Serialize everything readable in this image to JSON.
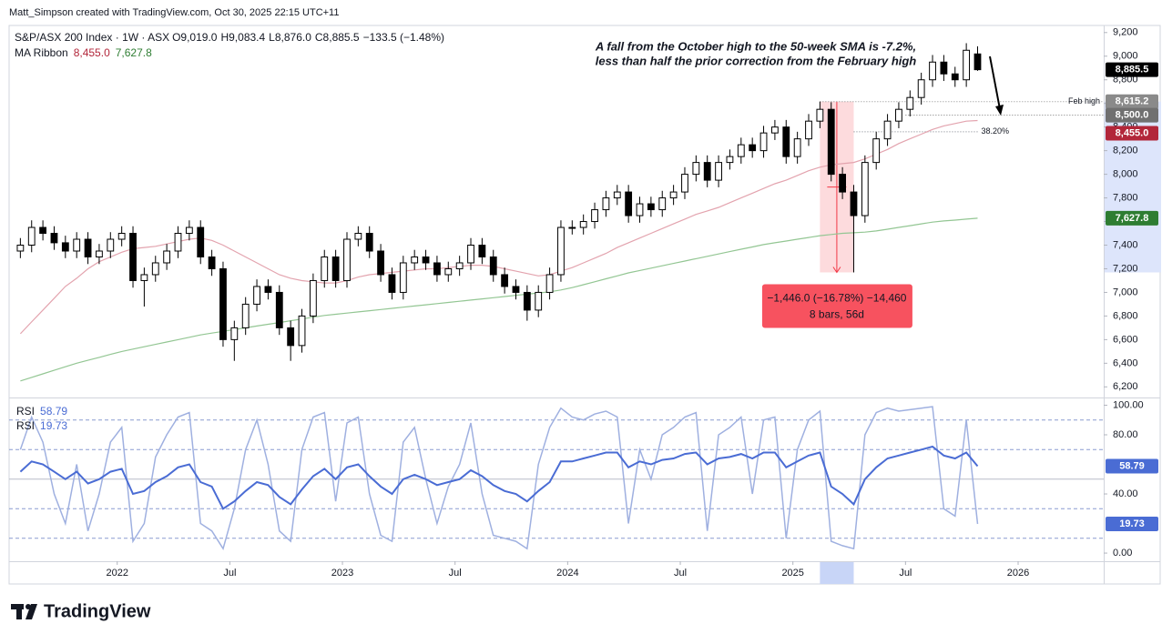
{
  "header": {
    "credit": "Matt_Simpson created with TradingView.com, Oct 30, 2025 22:15 UTC+11"
  },
  "footer": {
    "brand": "TradingView"
  },
  "chart_data": [
    {
      "type": "candlestick",
      "title": "S&P/ASX 200 Index · 1W · ASX",
      "legend_values": [
        "O9,019.0",
        "H9,083.4",
        "L8,876.0",
        "C8,885.5",
        "−133.5 (−1.48%)"
      ],
      "up_color": "#ffffff",
      "down_color": "#000000",
      "x": [
        2021.57,
        2021.62,
        2021.67,
        2021.72,
        2021.77,
        2021.82,
        2021.87,
        2021.92,
        2021.97,
        2022.02,
        2022.07,
        2022.12,
        2022.17,
        2022.22,
        2022.27,
        2022.32,
        2022.37,
        2022.42,
        2022.47,
        2022.52,
        2022.57,
        2022.62,
        2022.67,
        2022.72,
        2022.77,
        2022.82,
        2022.87,
        2022.92,
        2022.97,
        2023.02,
        2023.07,
        2023.12,
        2023.17,
        2023.22,
        2023.27,
        2023.32,
        2023.37,
        2023.42,
        2023.47,
        2023.52,
        2023.57,
        2023.62,
        2023.67,
        2023.72,
        2023.77,
        2023.82,
        2023.87,
        2023.92,
        2023.97,
        2024.02,
        2024.07,
        2024.12,
        2024.17,
        2024.22,
        2024.27,
        2024.32,
        2024.37,
        2024.42,
        2024.47,
        2024.52,
        2024.57,
        2024.62,
        2024.67,
        2024.72,
        2024.77,
        2024.82,
        2024.87,
        2024.92,
        2024.97,
        2025.02,
        2025.07,
        2025.12,
        2025.17,
        2025.22,
        2025.27,
        2025.32,
        2025.37,
        2025.42,
        2025.47,
        2025.52,
        2025.57,
        2025.62,
        2025.67,
        2025.72,
        2025.77,
        2025.82
      ],
      "open": [
        7350,
        7400,
        7550,
        7500,
        7420,
        7350,
        7450,
        7300,
        7350,
        7450,
        7500,
        7100,
        7150,
        7250,
        7350,
        7500,
        7550,
        7300,
        7200,
        6600,
        6700,
        6900,
        7050,
        7000,
        6700,
        6550,
        6800,
        7100,
        7300,
        7100,
        7450,
        7500,
        7350,
        7150,
        7000,
        7250,
        7300,
        7250,
        7150,
        7200,
        7250,
        7400,
        7300,
        7150,
        7050,
        7000,
        6850,
        7000,
        7150,
        7550,
        7550,
        7600,
        7700,
        7800,
        7850,
        7650,
        7750,
        7700,
        7800,
        7850,
        8000,
        8100,
        7950,
        8100,
        8150,
        8250,
        8200,
        8350,
        8400,
        8150,
        8300,
        8450,
        8550,
        8000,
        7850,
        7650,
        8100,
        8300,
        8450,
        8550,
        8650,
        8800,
        8950,
        8850,
        8800,
        9019
      ],
      "high": [
        7460,
        7610,
        7610,
        7560,
        7480,
        7510,
        7510,
        7410,
        7510,
        7560,
        7560,
        7210,
        7310,
        7410,
        7560,
        7610,
        7610,
        7360,
        7260,
        6760,
        6960,
        7110,
        7110,
        7060,
        6760,
        6860,
        7160,
        7360,
        7360,
        7510,
        7560,
        7560,
        7410,
        7210,
        7310,
        7360,
        7360,
        7310,
        7260,
        7310,
        7460,
        7460,
        7360,
        7210,
        7110,
        7060,
        7060,
        7210,
        7610,
        7610,
        7660,
        7760,
        7860,
        7910,
        7910,
        7810,
        7810,
        7860,
        7910,
        8060,
        8160,
        8160,
        8160,
        8210,
        8310,
        8310,
        8410,
        8460,
        8460,
        8360,
        8510,
        8615.2,
        8610,
        8060,
        7910,
        8160,
        8360,
        8510,
        8610,
        8710,
        8860,
        9010,
        9010,
        8910,
        9110,
        9083.4
      ],
      "low": [
        7290,
        7340,
        7440,
        7360,
        7290,
        7290,
        7240,
        7240,
        7290,
        7390,
        7040,
        6880,
        7090,
        7190,
        7290,
        7440,
        7240,
        7140,
        6540,
        6420,
        6640,
        6840,
        6940,
        6640,
        6420,
        6490,
        6740,
        7040,
        7040,
        7040,
        7390,
        7290,
        7090,
        6940,
        6940,
        7190,
        7190,
        7090,
        7090,
        7140,
        7190,
        7240,
        7090,
        6990,
        6940,
        6760,
        6790,
        6940,
        7090,
        7490,
        7490,
        7540,
        7640,
        7740,
        7590,
        7590,
        7640,
        7640,
        7740,
        7790,
        7940,
        7890,
        7890,
        8040,
        8090,
        8140,
        8140,
        8290,
        8090,
        8090,
        8240,
        8390,
        7940,
        7790,
        7169.2,
        7590,
        8040,
        8240,
        8390,
        8490,
        8590,
        8740,
        8790,
        8740,
        8740,
        8876
      ],
      "close": [
        7400,
        7550,
        7500,
        7420,
        7350,
        7450,
        7300,
        7350,
        7450,
        7500,
        7100,
        7150,
        7250,
        7350,
        7500,
        7550,
        7300,
        7200,
        6600,
        6700,
        6900,
        7050,
        7000,
        6700,
        6550,
        6800,
        7100,
        7300,
        7100,
        7450,
        7500,
        7350,
        7150,
        7000,
        7250,
        7300,
        7250,
        7150,
        7200,
        7250,
        7400,
        7300,
        7150,
        7050,
        7000,
        6850,
        7000,
        7150,
        7550,
        7550,
        7600,
        7700,
        7800,
        7850,
        7650,
        7750,
        7700,
        7800,
        7850,
        8000,
        8100,
        7950,
        8100,
        8150,
        8250,
        8200,
        8350,
        8400,
        8150,
        8300,
        8450,
        8550,
        8000,
        7850,
        7650,
        8100,
        8300,
        8450,
        8550,
        8650,
        8800,
        8950,
        8850,
        8800,
        9050,
        8885.5
      ],
      "last_label": "8,885.5",
      "ma_label": "MA Ribbon",
      "ma": [
        {
          "color": "#e3a3ae",
          "label_color": "#b2263a",
          "value_labels": [
            "8,455.0"
          ],
          "values": [
            6650,
            6750,
            6850,
            6950,
            7050,
            7120,
            7200,
            7260,
            7300,
            7340,
            7370,
            7380,
            7390,
            7410,
            7430,
            7450,
            7460,
            7440,
            7400,
            7350,
            7300,
            7250,
            7200,
            7150,
            7120,
            7100,
            7090,
            7080,
            7080,
            7100,
            7130,
            7150,
            7160,
            7170,
            7180,
            7190,
            7200,
            7200,
            7210,
            7220,
            7230,
            7230,
            7220,
            7200,
            7180,
            7160,
            7140,
            7150,
            7180,
            7210,
            7250,
            7290,
            7330,
            7380,
            7420,
            7460,
            7500,
            7540,
            7580,
            7620,
            7660,
            7690,
            7720,
            7760,
            7800,
            7840,
            7880,
            7920,
            7950,
            7990,
            8030,
            8060,
            8080,
            8090,
            8100,
            8130,
            8170,
            8210,
            8260,
            8300,
            8340,
            8380,
            8410,
            8430,
            8450,
            8455.0
          ]
        },
        {
          "color": "#93c693",
          "label_color": "#2e7d32",
          "value_labels": [
            "7,627.8"
          ],
          "values": [
            6250,
            6280,
            6310,
            6340,
            6370,
            6400,
            6425,
            6450,
            6475,
            6500,
            6520,
            6540,
            6560,
            6580,
            6600,
            6620,
            6640,
            6655,
            6670,
            6685,
            6700,
            6715,
            6730,
            6745,
            6760,
            6775,
            6790,
            6805,
            6815,
            6825,
            6835,
            6845,
            6855,
            6865,
            6875,
            6885,
            6895,
            6905,
            6915,
            6925,
            6935,
            6945,
            6955,
            6965,
            6975,
            6985,
            6995,
            7005,
            7020,
            7040,
            7065,
            7090,
            7115,
            7140,
            7165,
            7185,
            7205,
            7225,
            7245,
            7265,
            7285,
            7305,
            7325,
            7345,
            7365,
            7385,
            7405,
            7420,
            7435,
            7450,
            7465,
            7480,
            7490,
            7500,
            7505,
            7510,
            7520,
            7535,
            7550,
            7565,
            7580,
            7595,
            7605,
            7612,
            7620,
            7627.8
          ]
        }
      ],
      "levels": [
        {
          "value": 8615.2,
          "label": "Feb high",
          "axis_label": "8,615.2",
          "color": "#8a8a8a"
        },
        {
          "value": 8500,
          "axis_label": "8,500.0",
          "color": "#707070"
        },
        {
          "value": 8360,
          "label": "38.20%",
          "color": "#787b86"
        }
      ],
      "measure": {
        "from": 8615.2,
        "to": 7169.2,
        "x": [
          2025.12,
          2025.27
        ],
        "label": "−1,446.0 (−16.78%) −14,460",
        "sublabel": "8 bars, 56d"
      },
      "annotations": [
        "A fall from the October high to the 50-week SMA is -7.2%,",
        "less than half the prior correction from the February high"
      ],
      "xlim": [
        2021.52,
        2026.38
      ],
      "xticks": [
        {
          "value": 2022,
          "label": "2022"
        },
        {
          "value": 2022.5,
          "label": "Jul"
        },
        {
          "value": 2023,
          "label": "2023"
        },
        {
          "value": 2023.5,
          "label": "Jul"
        },
        {
          "value": 2024,
          "label": "2024"
        },
        {
          "value": 2024.5,
          "label": "Jul"
        },
        {
          "value": 2025,
          "label": "2025"
        },
        {
          "value": 2025.5,
          "label": "Jul"
        },
        {
          "value": 2026,
          "label": "2026"
        }
      ],
      "ylim": [
        6110,
        9260
      ],
      "yticks": [
        {
          "value": 6200,
          "label": "6,200"
        },
        {
          "value": 6400,
          "label": "6,400"
        },
        {
          "value": 6600,
          "label": "6,600"
        },
        {
          "value": 6800,
          "label": "6,800"
        },
        {
          "value": 7000,
          "label": "7,000"
        },
        {
          "value": 7200,
          "label": "7,200"
        },
        {
          "value": 7400,
          "label": "7,400"
        },
        {
          "value": 7600,
          "label": "7,600"
        },
        {
          "value": 7800,
          "label": "7,800"
        },
        {
          "value": 8000,
          "label": "8,000"
        },
        {
          "value": 8200,
          "label": "8,200"
        },
        {
          "value": 8400,
          "label": "8,400"
        },
        {
          "value": 8600,
          "label": "8,600"
        },
        {
          "value": 8800,
          "label": "8,800"
        },
        {
          "value": 9000,
          "label": "9,000"
        },
        {
          "value": 9200,
          "label": "9,200"
        }
      ],
      "grid": false
    },
    {
      "type": "line",
      "ylim": [
        -5.5,
        104.6
      ],
      "yticks": [
        {
          "value": 0,
          "label": "0.00"
        },
        {
          "value": 40,
          "label": "40.00"
        },
        {
          "value": 80,
          "label": "80.00"
        },
        {
          "value": 100,
          "label": "100.00"
        }
      ],
      "bands": [
        10,
        30,
        50,
        70,
        90
      ],
      "series": [
        {
          "name": "RSI",
          "color": "#4a6cd4",
          "width": 2,
          "values": [
            55,
            62,
            60,
            55,
            50,
            55,
            47,
            50,
            55,
            57,
            40,
            42,
            48,
            52,
            58,
            60,
            48,
            45,
            30,
            35,
            42,
            48,
            46,
            38,
            33,
            43,
            52,
            57,
            50,
            58,
            60,
            52,
            45,
            40,
            50,
            53,
            50,
            46,
            48,
            50,
            56,
            52,
            46,
            42,
            40,
            35,
            42,
            48,
            62,
            62,
            64,
            66,
            68,
            68,
            58,
            62,
            60,
            63,
            64,
            67,
            68,
            60,
            64,
            65,
            67,
            64,
            68,
            68,
            58,
            62,
            66,
            68,
            45,
            40,
            33,
            50,
            58,
            64,
            66,
            68,
            70,
            72,
            66,
            64,
            68,
            58.79
          ]
        },
        {
          "name": "RSI",
          "color": "#9fb0e0",
          "width": 1.5,
          "values": [
            70,
            92,
            75,
            40,
            20,
            60,
            15,
            40,
            75,
            85,
            8,
            20,
            65,
            80,
            92,
            95,
            20,
            15,
            3,
            30,
            70,
            90,
            60,
            15,
            8,
            70,
            92,
            95,
            35,
            88,
            92,
            40,
            12,
            8,
            75,
            85,
            50,
            20,
            45,
            60,
            88,
            40,
            12,
            10,
            8,
            3,
            60,
            85,
            98,
            92,
            90,
            94,
            96,
            92,
            20,
            70,
            50,
            80,
            85,
            92,
            95,
            15,
            80,
            85,
            92,
            40,
            90,
            92,
            10,
            70,
            90,
            96,
            8,
            5,
            3,
            80,
            95,
            98,
            96,
            97,
            98,
            99,
            30,
            25,
            90,
            19.73
          ]
        }
      ],
      "grid": false
    }
  ]
}
